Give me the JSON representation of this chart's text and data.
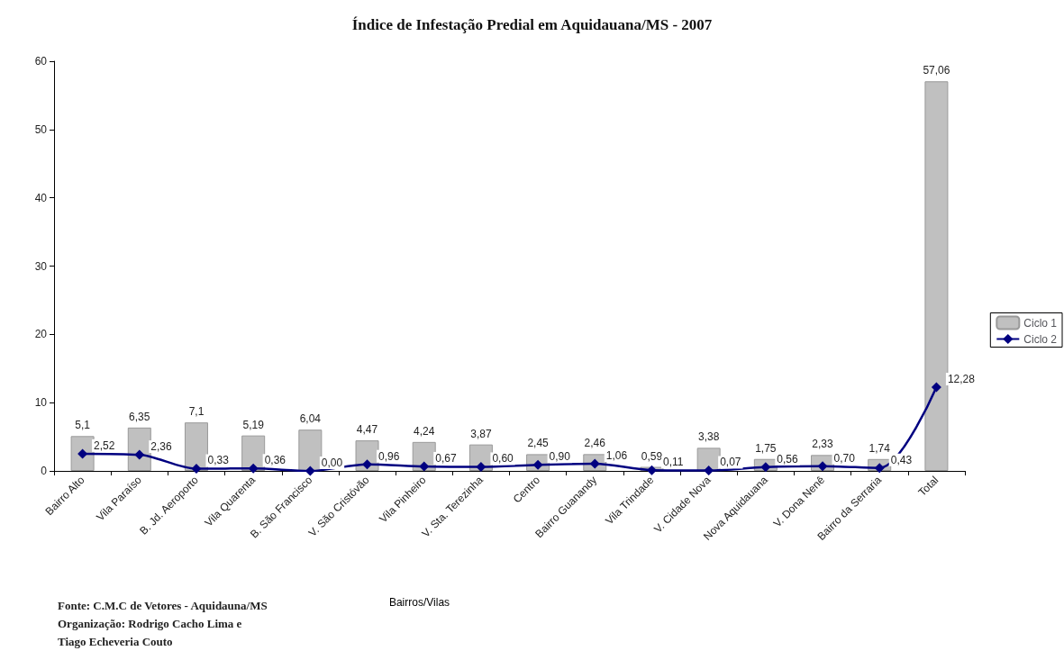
{
  "chart_data": {
    "type": "bar",
    "title": "Índice de Infestação Predial em Aquidauana/MS - 2007",
    "xlabel": "Bairros/Vilas",
    "categories": [
      "Bairro Alto",
      "Vila Paraíso",
      "B. Jd. Aeroporto",
      "Vila Quarenta",
      "B. São Francisco",
      "V. São Cristóvão",
      "Vila Pinheiro",
      "V. Sta. Terezinha",
      "Centro",
      "Bairro Guanandy",
      "Vila Trindade",
      "V. Cidade Nova",
      "Nova Aquidauana",
      "V. Dona Nenê",
      "Bairro da Serraria",
      "Total"
    ],
    "series": [
      {
        "name": "Ciclo 1",
        "color": "#c0c0c0",
        "values": [
          5.1,
          6.35,
          7.1,
          5.19,
          6.04,
          4.47,
          4.24,
          3.87,
          2.45,
          2.46,
          0.59,
          3.38,
          1.75,
          2.33,
          1.74,
          57.06
        ],
        "value_labels": [
          "5,1",
          "6,35",
          "7,1",
          "5,19",
          "6,04",
          "4,47",
          "4,24",
          "3,87",
          "2,45",
          "2,46",
          "0,59",
          "3,38",
          "1,75",
          "2,33",
          "1,74",
          "57,06"
        ]
      },
      {
        "name": "Ciclo 2",
        "type": "line",
        "color": "#000080",
        "marker": "diamond",
        "line_style": "solid",
        "values": [
          2.52,
          2.36,
          0.33,
          0.36,
          0.0,
          0.96,
          0.67,
          0.6,
          0.9,
          1.06,
          0.11,
          0.07,
          0.56,
          0.7,
          0.43,
          12.28
        ],
        "value_labels": [
          "2,52",
          "2,36",
          "0,33",
          "0,36",
          "0,00",
          "0,96",
          "0,67",
          "0,60",
          "0,90",
          "1,06",
          "0,11",
          "0,07",
          "0,56",
          "0,70",
          "0,43",
          "12,28"
        ]
      }
    ],
    "ylim": [
      0,
      60
    ],
    "yticks": [
      0,
      10,
      20,
      30,
      40,
      50,
      60
    ],
    "grid": false,
    "legend": "right",
    "annotations": [
      "Fonte: C.M.C de Vetores - Aquidauna/MS",
      "Organização: Rodrigo Cacho Lima e\nTiago Echeveria Couto"
    ]
  }
}
